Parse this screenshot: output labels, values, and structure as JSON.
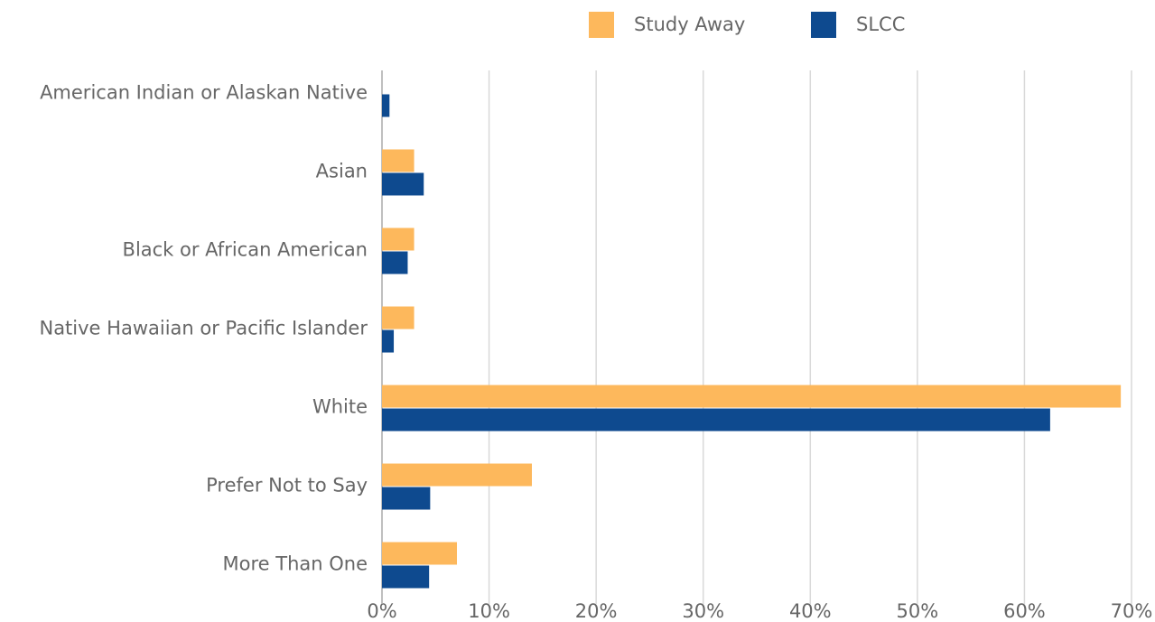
{
  "chart_data": {
    "type": "hbar",
    "categories": [
      "American Indian or Alaskan Native",
      "Asian",
      "Black or African American",
      "Native Hawaiian or Pacific Islander",
      "White",
      "Prefer Not to Say",
      "More Than One"
    ],
    "series": [
      {
        "name": "Study Away",
        "color": "#fdb85c",
        "values": [
          0,
          3.0,
          3.0,
          3.0,
          69.0,
          14.0,
          7.0
        ]
      },
      {
        "name": "SLCC",
        "color": "#0e4a8f",
        "values": [
          0.7,
          3.9,
          2.4,
          1.1,
          62.4,
          4.5,
          4.4
        ]
      }
    ],
    "xlim": [
      0,
      70
    ],
    "xticks": [
      {
        "value": 0,
        "label": "0%"
      },
      {
        "value": 10,
        "label": "10%"
      },
      {
        "value": 20,
        "label": "20%"
      },
      {
        "value": 30,
        "label": "30%"
      },
      {
        "value": 40,
        "label": "40%"
      },
      {
        "value": 50,
        "label": "50%"
      },
      {
        "value": 60,
        "label": "60%"
      },
      {
        "value": 70,
        "label": "70%"
      }
    ],
    "grid": true,
    "legend": "top"
  }
}
